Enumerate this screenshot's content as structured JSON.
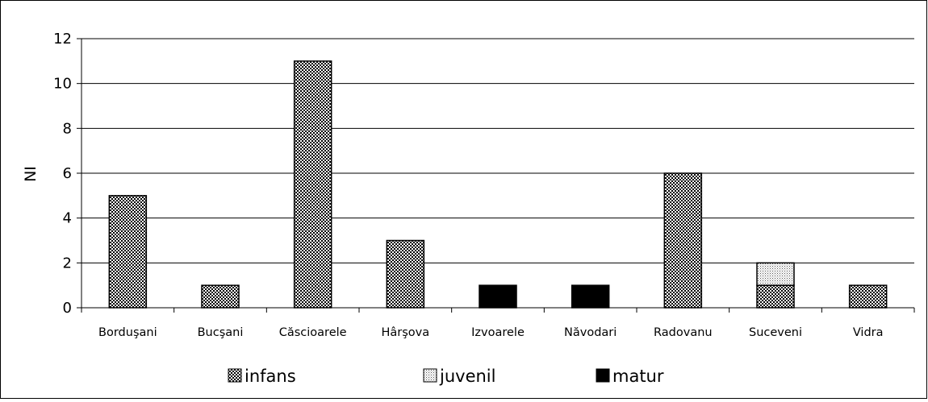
{
  "chart_data": {
    "type": "bar",
    "stacked": true,
    "categories": [
      "Borduşani",
      "Bucşani",
      "Căscioarele",
      "Hârşova",
      "Izvoarele",
      "Năvodari",
      "Radovanu",
      "Suceveni",
      "Vidra"
    ],
    "series": [
      {
        "name": "infans",
        "values": [
          5,
          1,
          11,
          3,
          0,
          0,
          6,
          1,
          1
        ],
        "color": "#7f7f7f",
        "pattern": "checker"
      },
      {
        "name": "juvenil",
        "values": [
          0,
          0,
          0,
          0,
          0,
          0,
          0,
          1,
          0
        ],
        "color": "#d8d8d8",
        "pattern": "dots"
      },
      {
        "name": "matur",
        "values": [
          0,
          0,
          0,
          0,
          1,
          1,
          0,
          0,
          0
        ],
        "color": "#000000",
        "pattern": "solid"
      }
    ],
    "title": "",
    "xlabel": "",
    "ylabel": "NI",
    "ylim": [
      0,
      12
    ],
    "yticks": [
      0,
      2,
      4,
      6,
      8,
      10,
      12
    ],
    "grid": true,
    "legend": "bottom"
  }
}
